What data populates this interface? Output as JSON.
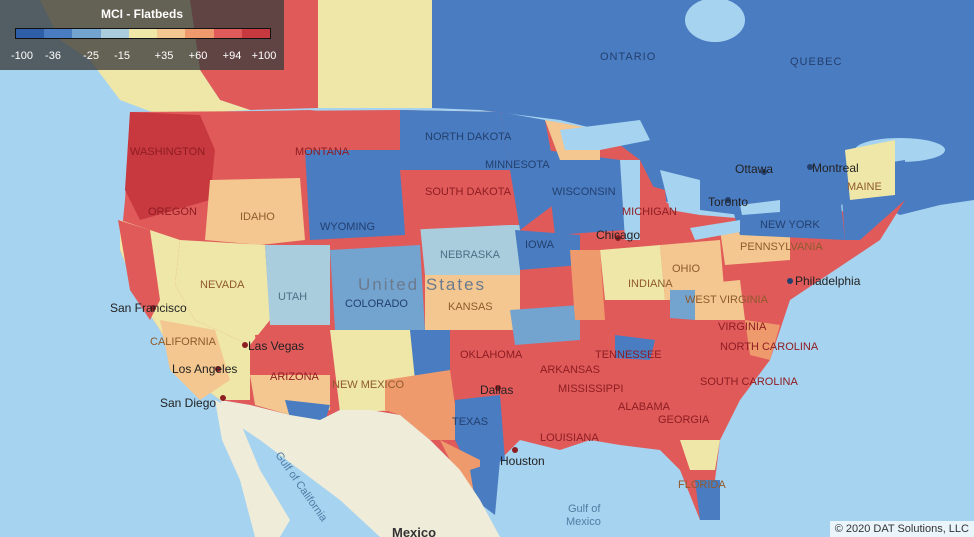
{
  "legend": {
    "title": "MCI - Flatbeds",
    "colors": [
      "#2f5fa8",
      "#4a7cc2",
      "#73a3cf",
      "#a9cddd",
      "#efe7a8",
      "#f3c78f",
      "#ee9a6c",
      "#e05a5a",
      "#c8383f"
    ],
    "ticks": [
      "-100",
      "-36",
      "-25",
      "-15",
      "+35",
      "+60",
      "+94",
      "+100"
    ]
  },
  "copyright": "© 2020 DAT Solutions, LLC",
  "regions": {
    "ontario": "ONTARIO",
    "quebec": "QUEBEC",
    "north_dakota": "NORTH DAKOTA",
    "south_dakota": "SOUTH DAKOTA",
    "montana": "MONTANA",
    "wyoming": "WYOMING",
    "idaho": "IDAHO",
    "washington": "WASHINGTON",
    "oregon": "OREGON",
    "nevada": "NEVADA",
    "utah": "UTAH",
    "colorado": "COLORADO",
    "nebraska": "NEBRASKA",
    "kansas": "KANSAS",
    "california": "CALIFORNIA",
    "arizona": "ARIZONA",
    "new_mexico": "NEW MEXICO",
    "oklahoma": "OKLAHOMA",
    "texas": "TEXAS",
    "arkansas": "ARKANSAS",
    "mississippi": "MISSISSIPPI",
    "louisiana": "LOUISIANA",
    "alabama": "ALABAMA",
    "georgia": "GEORGIA",
    "florida": "FLORIDA",
    "tennessee": "TENNESSEE",
    "indiana": "INDIANA",
    "ohio": "OHIO",
    "michigan": "MICHIGAN",
    "wisconsin": "WISCONSIN",
    "minnesota": "MINNESOTA",
    "iowa": "IOWA",
    "virginia": "VIRGINIA",
    "west_virginia": "WEST VIRGINIA",
    "north_carolina": "NORTH CAROLINA",
    "south_carolina": "SOUTH CAROLINA",
    "pennsylvania": "PENNSYLVANIA",
    "new_york": "NEW YORK",
    "maine": "MAINE",
    "country": "United States"
  },
  "cities": {
    "san_francisco": "San Francisco",
    "los_angeles": "Los Angeles",
    "las_vegas": "Las Vegas",
    "san_diego": "San Diego",
    "dallas": "Dallas",
    "houston": "Houston",
    "chicago": "Chicago",
    "toronto": "Toronto",
    "ottawa": "Ottawa",
    "montreal": "Montreal",
    "philadelphia": "Philadelphia"
  },
  "water": {
    "gulf_of_california": "Gulf of California",
    "gulf_of_mexico_1": "Gulf of",
    "gulf_of_mexico_2": "Mexico"
  },
  "mexico": "Mexico"
}
